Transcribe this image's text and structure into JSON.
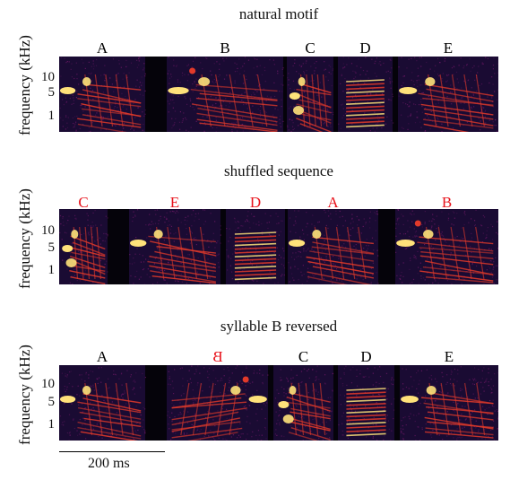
{
  "panels": [
    {
      "title": "natural motif",
      "ylabel": "frequency (kHz)",
      "yticks": [
        "10",
        "5",
        "1"
      ],
      "segments": [
        {
          "label": "A",
          "color": "#000000",
          "kind": "A"
        },
        {
          "label": "B",
          "color": "#000000",
          "kind": "B"
        },
        {
          "label": "C",
          "color": "#000000",
          "kind": "C"
        },
        {
          "label": "D",
          "color": "#000000",
          "kind": "D"
        },
        {
          "label": "E",
          "color": "#000000",
          "kind": "E"
        }
      ]
    },
    {
      "title": "shuffled sequence",
      "ylabel": "frequency (kHz)",
      "yticks": [
        "10",
        "5",
        "1"
      ],
      "segments": [
        {
          "label": "C",
          "color": "#e8121b",
          "kind": "C"
        },
        {
          "label": "E",
          "color": "#e8121b",
          "kind": "E"
        },
        {
          "label": "D",
          "color": "#e8121b",
          "kind": "D"
        },
        {
          "label": "A",
          "color": "#e8121b",
          "kind": "A"
        },
        {
          "label": "B",
          "color": "#e8121b",
          "kind": "B"
        }
      ]
    },
    {
      "title": "syllable B reversed",
      "ylabel": "frequency (kHz)",
      "yticks": [
        "10",
        "5",
        "1"
      ],
      "segments": [
        {
          "label": "A",
          "color": "#000000",
          "kind": "A"
        },
        {
          "label": "B",
          "color": "#e8121b",
          "kind": "Brev",
          "mirrored": true
        },
        {
          "label": "C",
          "color": "#000000",
          "kind": "C"
        },
        {
          "label": "D",
          "color": "#000000",
          "kind": "D"
        },
        {
          "label": "E",
          "color": "#000000",
          "kind": "E"
        }
      ]
    }
  ],
  "scale_bar": {
    "label": "200 ms"
  },
  "colors": {
    "background": "#1a0b33",
    "gap": "#05030a",
    "hot": "#ffe27a",
    "warm": "#e23a2a",
    "mid": "#7b1a6e"
  }
}
